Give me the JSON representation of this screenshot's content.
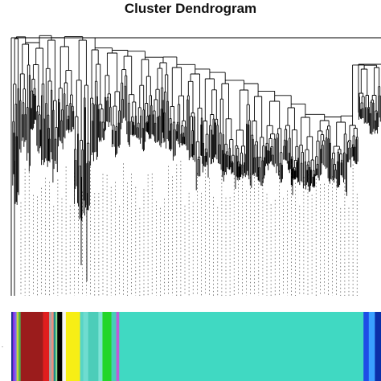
{
  "figure": {
    "title": "Cluster Dendrogram"
  },
  "colors": {
    "branch": "#000000",
    "leaf_guide": "#222222"
  },
  "module_colors": [
    {
      "name": "navy",
      "color": "#26309e",
      "weight": 0.4
    },
    {
      "name": "purple",
      "color": "#8a2be2",
      "weight": 0.4
    },
    {
      "name": "slateblue",
      "color": "#7b68ee",
      "weight": 0.5
    },
    {
      "name": "yellowgreen",
      "color": "#c6d63a",
      "weight": 0.5
    },
    {
      "name": "seagreen",
      "color": "#4caf50",
      "weight": 0.5
    },
    {
      "name": "darkred",
      "color": "#9b1c1c",
      "weight": 5.5
    },
    {
      "name": "red",
      "color": "#e01e1e",
      "weight": 1.5
    },
    {
      "name": "grey",
      "color": "#a7a7a7",
      "weight": 0.6
    },
    {
      "name": "salmon",
      "color": "#f08d7f",
      "weight": 0.5
    },
    {
      "name": "teal",
      "color": "#1f8a8a",
      "weight": 0.5
    },
    {
      "name": "lightgreen",
      "color": "#8ee08e",
      "weight": 0.4
    },
    {
      "name": "black",
      "color": "#000000",
      "weight": 1.2
    },
    {
      "name": "white",
      "color": "#f5f5f5",
      "weight": 0.9
    },
    {
      "name": "yellow",
      "color": "#f7ee15",
      "weight": 3.5
    },
    {
      "name": "cyan-a",
      "color": "#58d4c5",
      "weight": 0.8
    },
    {
      "name": "cyan-b",
      "color": "#6fdcd0",
      "weight": 1.2
    },
    {
      "name": "cyan-c",
      "color": "#4ccdb9",
      "weight": 2.5
    },
    {
      "name": "cyan-d",
      "color": "#7ee3d6",
      "weight": 1.0
    },
    {
      "name": "green",
      "color": "#22d62a",
      "weight": 2.2
    },
    {
      "name": "cyan-e",
      "color": "#47cdb8",
      "weight": 1.2
    },
    {
      "name": "magenta",
      "color": "#c05ad8",
      "weight": 0.7
    },
    {
      "name": "turquoise",
      "color": "#40d9c2",
      "weight": 60.0
    },
    {
      "name": "blue",
      "color": "#1e4ee6",
      "weight": 1.3
    },
    {
      "name": "lightblue",
      "color": "#3aa0ff",
      "weight": 1.5
    },
    {
      "name": "darkblue",
      "color": "#0b2fa8",
      "weight": 1.5
    }
  ]
}
